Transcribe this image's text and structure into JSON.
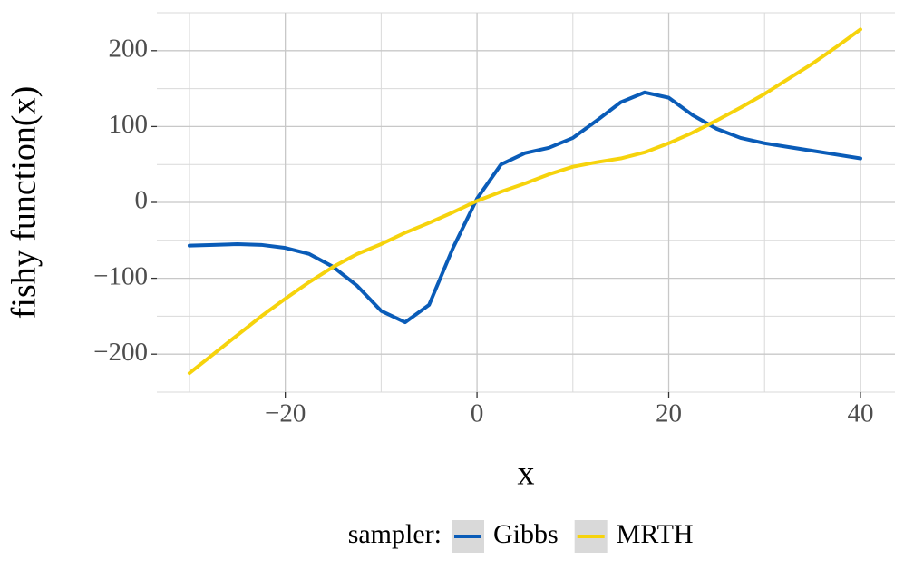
{
  "chart_data": {
    "type": "line",
    "x_label": "x",
    "y_label": "fishy function(x)",
    "legend_title": "sampler:",
    "x": [
      -30,
      -27.5,
      -25,
      -22.5,
      -20,
      -17.5,
      -15,
      -12.5,
      -10,
      -7.5,
      -5,
      -2.5,
      0,
      2.5,
      5,
      7.5,
      10,
      12.5,
      15,
      17.5,
      20,
      22.5,
      25,
      27.5,
      30,
      32.5,
      35,
      37.5,
      40
    ],
    "series": [
      {
        "name": "Gibbs",
        "color": "#0a5cb8",
        "values": [
          -57,
          -56,
          -55,
          -56,
          -60,
          -68,
          -85,
          -110,
          -143,
          -158,
          -135,
          -60,
          5,
          50,
          65,
          72,
          85,
          108,
          132,
          145,
          138,
          115,
          97,
          85,
          78,
          73,
          68,
          63,
          58
        ]
      },
      {
        "name": "MRTH",
        "color": "#f6d30c",
        "values": [
          -225,
          -200,
          -175,
          -150,
          -127,
          -105,
          -85,
          -68,
          -55,
          -40,
          -27,
          -13,
          2,
          14,
          25,
          37,
          47,
          53,
          58,
          66,
          78,
          92,
          108,
          125,
          143,
          163,
          183,
          205,
          228
        ]
      }
    ],
    "xlim": [
      -33.4,
      43.6
    ],
    "ylim": [
      -250,
      250
    ],
    "xticks": [
      {
        "value": -20,
        "label": "−20"
      },
      0,
      20,
      40
    ],
    "yticks": [
      {
        "value": -200,
        "label": "−200"
      },
      {
        "value": -100,
        "label": "−100"
      },
      0,
      100,
      200
    ],
    "x_minor_ticks": [
      -30,
      -10,
      10,
      30
    ],
    "y_minor_ticks": [
      -250,
      -150,
      -50,
      50,
      150,
      250
    ],
    "grid": true,
    "legend_position": "bottom"
  }
}
